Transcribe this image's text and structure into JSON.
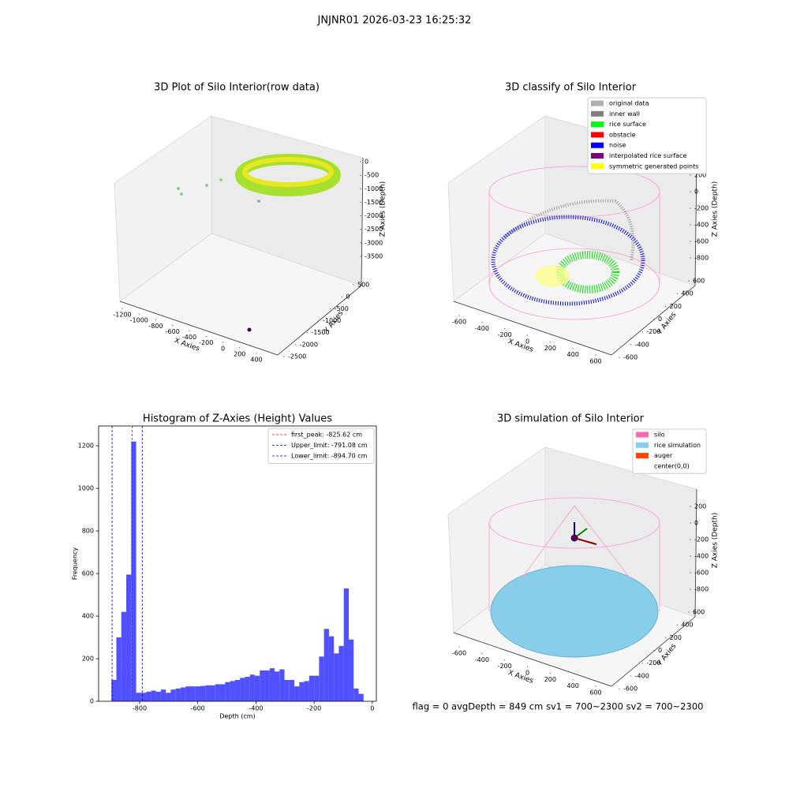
{
  "suptitle": "JNJNR01 2026-03-23 16:25:32",
  "footer": "flag = 0     avgDepth = 849 cm  sv1 = 700~2300  sv2 = 700~2300",
  "chart_data": [
    {
      "type": "scatter3d",
      "title": "3D Plot of Silo Interior(row data)",
      "xlabel": "X Axies",
      "ylabel": "Y Axies",
      "zlabel": "Z Axies (Depth)",
      "xticks": [
        -1200,
        -1000,
        -800,
        -600,
        -400,
        -200,
        0,
        200,
        400
      ],
      "yticks": [
        500,
        0,
        -500,
        -1000,
        -1500,
        -2000,
        -2500
      ],
      "zticks": [
        0,
        -500,
        -1000,
        -1500,
        -2000,
        -2500,
        -3000,
        -3500
      ]
    },
    {
      "type": "scatter3d",
      "title": "3D classify of Silo Interior",
      "xlabel": "X Axies",
      "ylabel": "Y Axies",
      "zlabel": "Z Axies (Depth)",
      "xticks": [
        -600,
        -400,
        -200,
        0,
        200,
        400,
        600
      ],
      "yticks": [
        600,
        400,
        200,
        0,
        -200,
        -400,
        -600
      ],
      "zticks": [
        200,
        0,
        -200,
        -400,
        -600,
        -800
      ],
      "legend": [
        {
          "name": "original data",
          "color": "#b0b0b0"
        },
        {
          "name": "inner wall",
          "color": "#808080"
        },
        {
          "name": "rice surface",
          "color": "#00ff00"
        },
        {
          "name": "obstacle",
          "color": "#ff0000"
        },
        {
          "name": "noise",
          "color": "#0000ff"
        },
        {
          "name": "interpolated rice surface",
          "color": "#800080"
        },
        {
          "name": "symmetric generated points",
          "color": "#ffff00"
        }
      ]
    },
    {
      "type": "hist",
      "title": "Histogram of Z-Axies (Height) Values",
      "xlabel": "Depth (cm)",
      "ylabel": "Frequency",
      "color": "#5050ff",
      "bins": [
        -897,
        -880,
        -863,
        -846,
        -829,
        -812,
        -795,
        -778,
        -761,
        -744,
        -727,
        -710,
        -693,
        -676,
        -659,
        -642,
        -625,
        -608,
        -591,
        -574,
        -557,
        -540,
        -523,
        -506,
        -489,
        -472,
        -455,
        -438,
        -421,
        -404,
        -387,
        -370,
        -353,
        -336,
        -319,
        -302,
        -285,
        -268,
        -251,
        -234,
        -217,
        -200,
        -183,
        -166,
        -149,
        -132,
        -115,
        -98,
        -81,
        -64,
        -47,
        -30
      ],
      "counts": [
        100,
        300,
        420,
        595,
        1220,
        40,
        40,
        45,
        50,
        45,
        55,
        40,
        55,
        60,
        65,
        70,
        70,
        70,
        72,
        75,
        75,
        80,
        80,
        90,
        95,
        100,
        110,
        115,
        125,
        120,
        145,
        145,
        155,
        140,
        150,
        100,
        100,
        70,
        90,
        95,
        120,
        120,
        210,
        340,
        305,
        225,
        260,
        530,
        290,
        60,
        35
      ],
      "xlim": [
        -941,
        14
      ],
      "ylim": [
        0,
        1293
      ],
      "xticks": [
        -800,
        -600,
        -400,
        -200,
        0
      ],
      "yticks": [
        0,
        200,
        400,
        600,
        800,
        1000,
        1200
      ],
      "lines": [
        {
          "label": "first_peak: -825.62 cm",
          "value": -825.62,
          "color": "#ff0000"
        },
        {
          "label": "Upper_limit: -791.08 cm",
          "value": -791.08,
          "color": "#0000cc"
        },
        {
          "label": "Lower_limit: -894.70 cm",
          "value": -894.7,
          "color": "#0000cc"
        }
      ]
    },
    {
      "type": "scatter3d",
      "title": "3D simulation of Silo Interior",
      "xlabel": "X Axies",
      "ylabel": "Y Axies",
      "zlabel": "Z Axies (Depth)",
      "xticks": [
        -600,
        -400,
        -200,
        0,
        200,
        400,
        600
      ],
      "yticks": [
        600,
        400,
        200,
        0,
        -200,
        -400,
        -600
      ],
      "zticks": [
        200,
        0,
        -200,
        -400,
        -600,
        -800
      ],
      "legend": [
        {
          "name": "silo",
          "color": "#ff69b4"
        },
        {
          "name": "rice simulation",
          "color": "#87ceeb"
        },
        {
          "name": "auger",
          "color": "#ff4500"
        },
        {
          "name": "center(0,0)",
          "color": "#ffffff"
        }
      ]
    }
  ]
}
